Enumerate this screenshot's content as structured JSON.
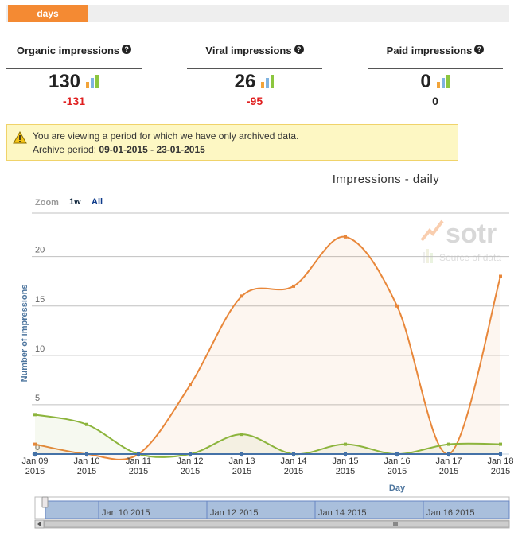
{
  "tab": "days",
  "metrics": [
    {
      "label": "Organic impressions",
      "value": 130,
      "change": -131
    },
    {
      "label": "Viral impressions",
      "value": 26,
      "change": -95
    },
    {
      "label": "Paid impressions",
      "value": 0,
      "change": 0
    }
  ],
  "warning": {
    "text": "You are viewing a period for which we have only archived data.",
    "period_label": "Archive period:",
    "period": "09-01-2015 - 23-01-2015"
  },
  "chart_data": {
    "type": "line",
    "title": "Impressions - daily",
    "zoom": {
      "label": "Zoom",
      "options": [
        "1w",
        "All"
      ]
    },
    "watermark": {
      "logo": "sotr",
      "text": "Source of data"
    },
    "categories": [
      "Jan 09 2015",
      "Jan 10 2015",
      "Jan 11 2015",
      "Jan 12 2015",
      "Jan 13 2015",
      "Jan 14 2015",
      "Jan 15 2015",
      "Jan 16 2015",
      "Jan 17 2015",
      "Jan 18 2015"
    ],
    "series": [
      {
        "color": "#e8873a",
        "values": [
          1,
          0,
          0,
          7,
          16,
          17,
          22,
          15,
          0,
          18
        ]
      },
      {
        "color": "#8cb43c",
        "values": [
          4,
          3,
          0,
          0,
          2,
          0,
          1,
          0,
          1,
          1
        ]
      },
      {
        "color": "#4572a7",
        "values": [
          0,
          0,
          0,
          0,
          0,
          0,
          0,
          0,
          0,
          0
        ]
      }
    ],
    "ylim": [
      0,
      24
    ],
    "yticks": [
      0,
      5,
      10,
      15,
      20
    ],
    "grid": true,
    "y_label": "Number of impressions",
    "x_label": "Day",
    "navigator_labels": [
      "Jan 10 2015",
      "Jan 12 2015",
      "Jan 14 2015",
      "Jan 16 2015"
    ]
  }
}
